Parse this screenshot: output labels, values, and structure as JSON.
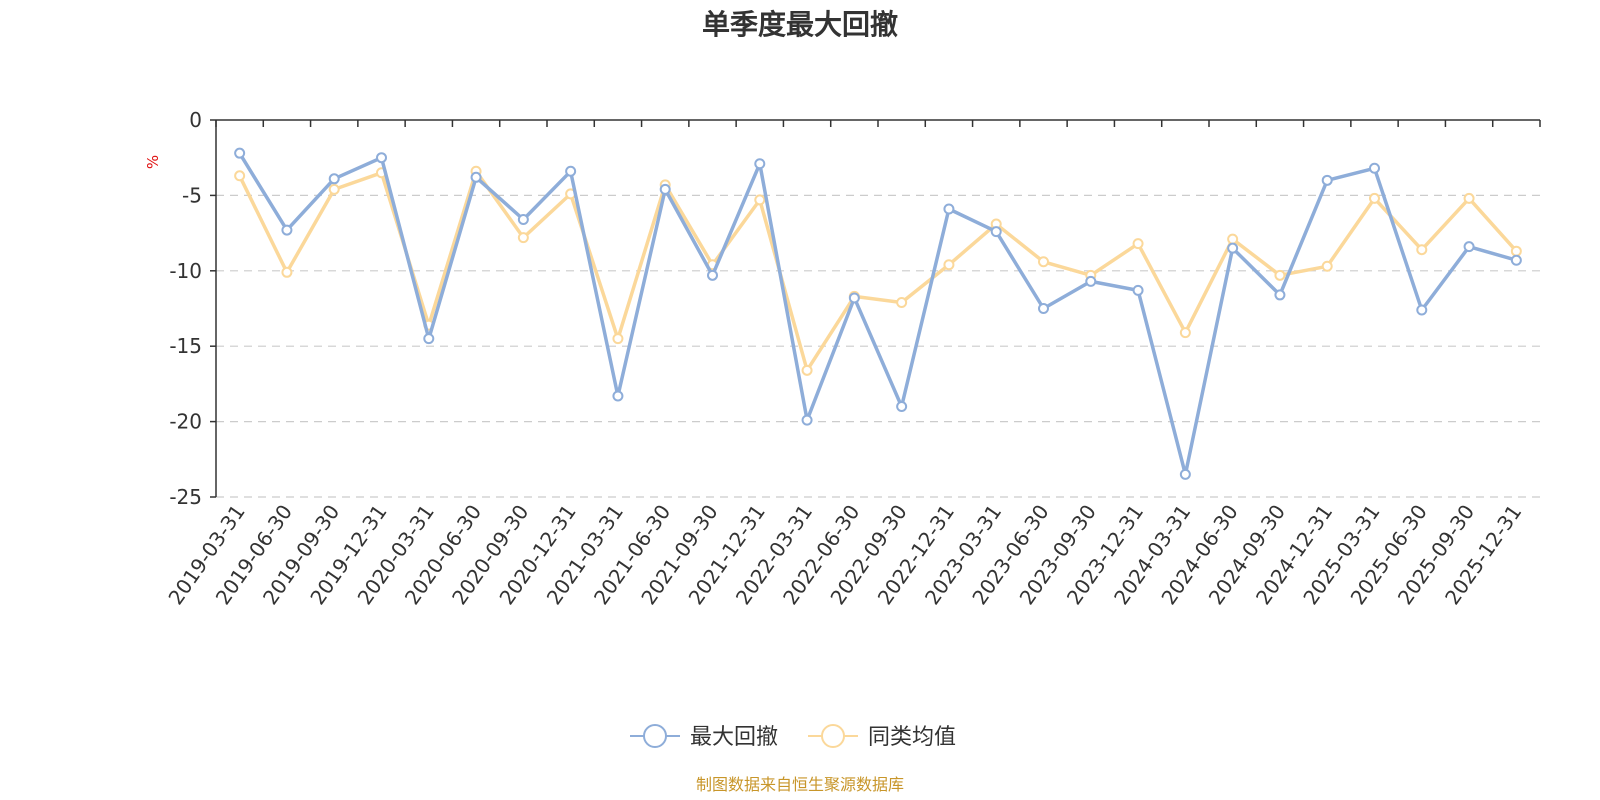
{
  "chart_data": {
    "type": "line",
    "title": "单季度最大回撤",
    "ylabel": "%",
    "ylim": [
      -25,
      0
    ],
    "yticks": [
      0,
      -5,
      -10,
      -15,
      -20,
      -25
    ],
    "grid": true,
    "legend_position": "bottom",
    "x": [
      "2019-03-31",
      "2019-06-30",
      "2019-09-30",
      "2019-12-31",
      "2020-03-31",
      "2020-06-30",
      "2020-09-30",
      "2020-12-31",
      "2021-03-31",
      "2021-06-30",
      "2021-09-30",
      "2021-12-31",
      "2022-03-31",
      "2022-06-30",
      "2022-09-30",
      "2022-12-31",
      "2023-03-31",
      "2023-06-30",
      "2023-09-30",
      "2023-12-31",
      "2024-03-31",
      "2024-06-30",
      "2024-09-30",
      "2024-12-31",
      "2025-03-31",
      "2025-06-30",
      "2025-09-30",
      "2025-12-31"
    ],
    "series": [
      {
        "name": "最大回撤",
        "color": "#8eadd9",
        "values": [
          -2.2,
          -7.3,
          -3.9,
          -2.5,
          -14.5,
          -3.8,
          -6.6,
          -3.4,
          -18.3,
          -4.6,
          -10.3,
          -2.9,
          -19.9,
          -11.8,
          -19.0,
          -5.9,
          -7.4,
          -12.5,
          -10.7,
          -11.3,
          -23.5,
          -8.5,
          -11.6,
          -4.0,
          -3.2,
          -12.6,
          -8.4,
          -9.3
        ]
      },
      {
        "name": "同类均值",
        "color": "#fbd89a",
        "values": [
          -3.7,
          -10.1,
          -4.6,
          -3.5,
          -13.6,
          -3.4,
          -7.8,
          -4.9,
          -14.5,
          -4.3,
          -9.6,
          -5.3,
          -16.6,
          -11.7,
          -12.1,
          -9.6,
          -6.9,
          -9.4,
          -10.3,
          -8.2,
          -14.1,
          -7.9,
          -10.3,
          -9.7,
          -5.2,
          -8.6,
          -5.2,
          -8.7
        ]
      }
    ]
  },
  "source_note": "制图数据来自恒生聚源数据库"
}
